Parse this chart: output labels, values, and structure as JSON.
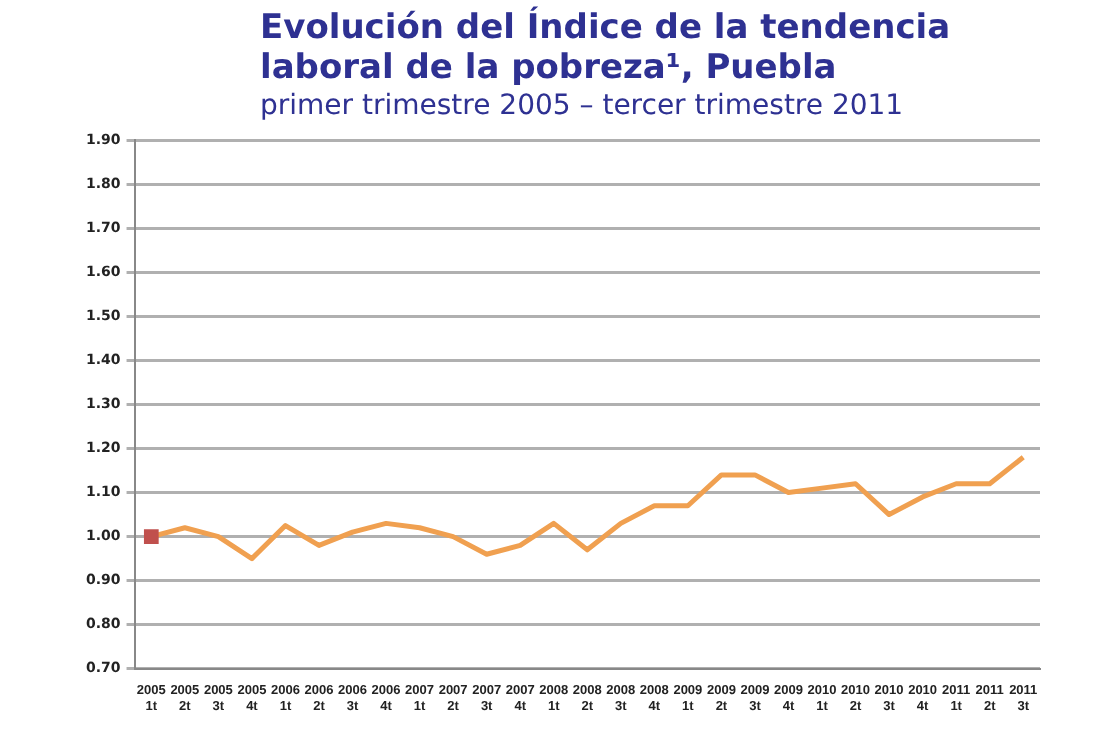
{
  "chart_data": {
    "type": "line",
    "title": "Evolución del Índice de la tendencia laboral de la pobreza¹, Puebla",
    "subtitle": "primer trimestre 2005 – tercer trimestre 2011",
    "categories": [
      "2005 1t",
      "2005 2t",
      "2005 3t",
      "2005 4t",
      "2006 1t",
      "2006 2t",
      "2006 3t",
      "2006 4t",
      "2007 1t",
      "2007 2t",
      "2007 3t",
      "2007 4t",
      "2008 1t",
      "2008 2t",
      "2008 3t",
      "2008 4t",
      "2009 1t",
      "2009 2t",
      "2009 3t",
      "2009 4t",
      "2010 1t",
      "2010 2t",
      "2010 3t",
      "2010 4t",
      "2011 1t",
      "2011 2t",
      "2011 3t"
    ],
    "series": [
      {
        "color": "#f0a050",
        "marker": "none",
        "values": [
          1.0,
          1.02,
          1.0,
          0.95,
          1.025,
          0.98,
          1.01,
          1.03,
          1.02,
          1.0,
          0.96,
          0.98,
          1.03,
          0.97,
          1.03,
          1.07,
          1.07,
          1.14,
          1.14,
          1.1,
          1.11,
          1.12,
          1.05,
          1.09,
          1.12,
          1.12,
          1.18
        ]
      },
      {
        "type": "scatter",
        "color": "#c0504d",
        "marker": "square",
        "x": [
          "2005 1t"
        ],
        "values": [
          1.0
        ]
      }
    ],
    "ylim": [
      0.7,
      1.9
    ],
    "yticks": [
      {
        "value": 0.7,
        "label": "0.70"
      },
      {
        "value": 0.8,
        "label": "0.80"
      },
      {
        "value": 0.9,
        "label": "0.90"
      },
      {
        "value": 1.0,
        "label": "1.00"
      },
      {
        "value": 1.1,
        "label": "1.10"
      },
      {
        "value": 1.2,
        "label": "1.20"
      },
      {
        "value": 1.3,
        "label": "1.30"
      },
      {
        "value": 1.4,
        "label": "1.40"
      },
      {
        "value": 1.5,
        "label": "1.50"
      },
      {
        "value": 1.6,
        "label": "1.60"
      },
      {
        "value": 1.7,
        "label": "1.70"
      },
      {
        "value": 1.8,
        "label": "1.80"
      },
      {
        "value": 1.9,
        "label": "1.90"
      }
    ],
    "grid": "y",
    "legend": false
  }
}
